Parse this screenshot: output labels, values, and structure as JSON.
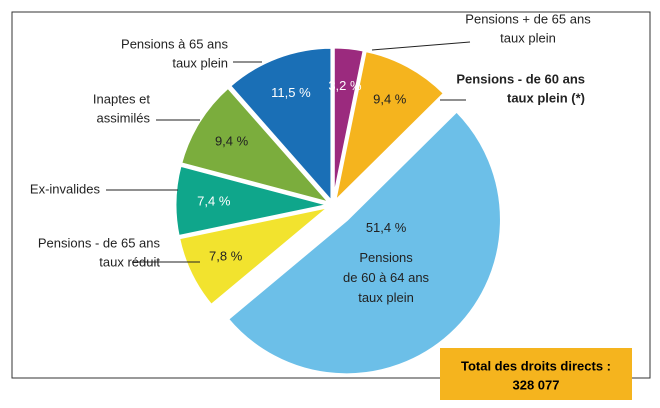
{
  "chart_data": {
    "type": "pie",
    "categories": [
      [
        "Pensions + de 65 ans",
        "taux plein"
      ],
      [
        "Pensions - de 60 ans",
        "taux plein (*)"
      ],
      [
        "Pensions",
        "de 60 à 64 ans",
        "taux plein"
      ],
      [
        "Pensions - de 65 ans",
        "taux réduit"
      ],
      [
        "Ex-invalides"
      ],
      [
        "Inaptes et",
        "assimilés"
      ],
      [
        "Pensions à 65 ans",
        "taux plein"
      ]
    ],
    "values": [
      3.2,
      9.4,
      51.4,
      7.8,
      7.4,
      9.4,
      11.5
    ],
    "value_labels": [
      "3,2 %",
      "9,4 %",
      "51,4 %",
      "7,8 %",
      "7,4 %",
      "9,4 %",
      "11,5 %"
    ],
    "colors": [
      "#9b2a7e",
      "#f5b41e",
      "#6cbfe8",
      "#f2e32e",
      "#0fa68b",
      "#7bad3d",
      "#1a6fb6"
    ],
    "total": {
      "label": "Total des droits directs :",
      "value_label": "328 077"
    }
  }
}
